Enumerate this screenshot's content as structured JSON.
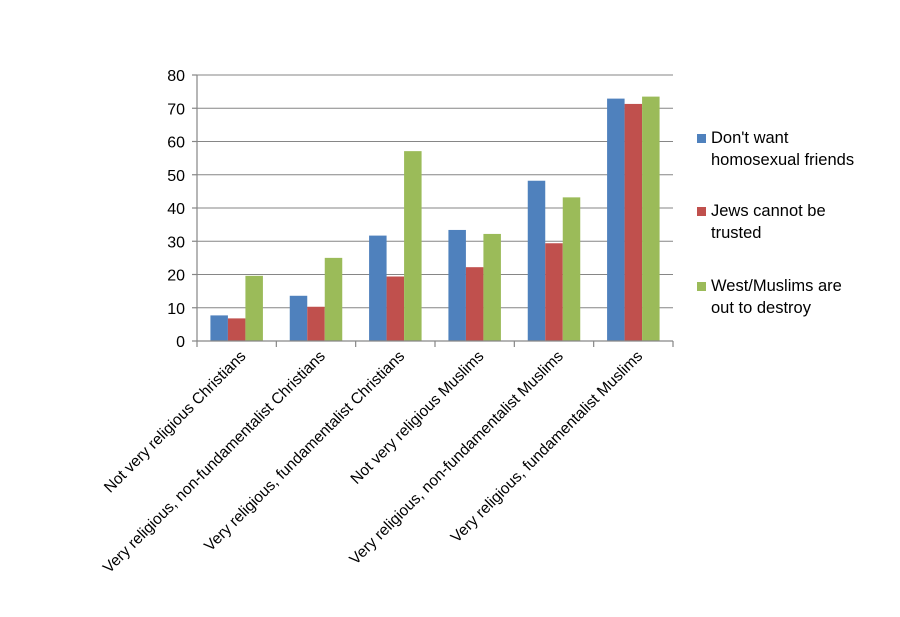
{
  "chart_data": {
    "type": "bar",
    "title": "",
    "xlabel": "",
    "ylabel": "",
    "ylim": [
      0,
      80
    ],
    "yticks": [
      0,
      10,
      20,
      30,
      40,
      50,
      60,
      70,
      80
    ],
    "grid": true,
    "legend_position": "right",
    "categories": [
      "Not very religious Christians",
      "Very religious, non-fundamentalist Christians",
      "Very religious, fundamentalist Christians",
      "Not very religious Muslims",
      "Very religious, non-fundamentalist Muslims",
      "Very religious, fundamentalist Muslims"
    ],
    "series": [
      {
        "name": "Don't want homosexual friends",
        "legend_lines": [
          "Don't want",
          "homosexual friends"
        ],
        "color": "#4F81BD",
        "values": [
          7.7,
          13.6,
          31.7,
          33.4,
          48.2,
          72.9
        ]
      },
      {
        "name": "Jews cannot be trusted",
        "legend_lines": [
          "Jews cannot be",
          "trusted"
        ],
        "color": "#C0504D",
        "values": [
          6.8,
          10.3,
          19.4,
          22.2,
          29.4,
          71.3
        ]
      },
      {
        "name": "West/Muslims are out to destroy",
        "legend_lines": [
          "West/Muslims are",
          "out to destroy"
        ],
        "color": "#9BBB59",
        "values": [
          19.6,
          25.0,
          57.1,
          32.2,
          43.2,
          73.5
        ]
      }
    ]
  }
}
